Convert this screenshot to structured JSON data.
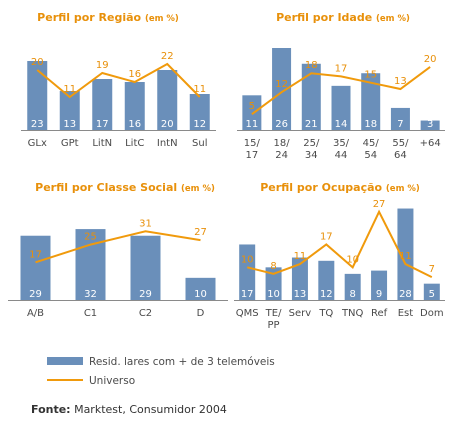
{
  "colors": {
    "bar": "#6a8fba",
    "line": "#f09a0c",
    "title": "#e8900a",
    "axis": "#8a8a8a"
  },
  "chart_data": [
    {
      "type": "bar+line",
      "title": "Perfil por Região",
      "unit": "(em %)",
      "categories": [
        "GLx",
        "GPt",
        "LitN",
        "LitC",
        "IntN",
        "Sul"
      ],
      "series": [
        {
          "name": "Resid. lares com + de 3 telemóveis",
          "kind": "bar",
          "values": [
            23,
            13,
            17,
            16,
            20,
            12
          ]
        },
        {
          "name": "Universo",
          "kind": "line",
          "values": [
            20,
            11,
            19,
            16,
            22,
            11
          ]
        }
      ],
      "ylim": [
        0,
        26
      ]
    },
    {
      "type": "bar+line",
      "title": "Perfil por Idade",
      "unit": "(em %)",
      "categories": [
        "15/\n17",
        "18/\n24",
        "25/\n34",
        "35/\n44",
        "45/\n54",
        "55/\n64",
        "+64"
      ],
      "series": [
        {
          "name": "Resid. lares com + de 3 telemóveis",
          "kind": "bar",
          "values": [
            11,
            26,
            21,
            14,
            18,
            7,
            3
          ]
        },
        {
          "name": "Universo",
          "kind": "line",
          "values": [
            5,
            12,
            18,
            17,
            15,
            13,
            20
          ]
        }
      ],
      "ylim": [
        0,
        26
      ]
    },
    {
      "type": "bar+line",
      "title": "Perfil por Classe Social",
      "unit": "(em %)",
      "categories": [
        "A/B",
        "C1",
        "C2",
        "D"
      ],
      "series": [
        {
          "name": "Resid. lares com + de 3 telemóveis",
          "kind": "bar",
          "values": [
            29,
            32,
            29,
            10
          ]
        },
        {
          "name": "Universo",
          "kind": "line",
          "values": [
            17,
            25,
            31,
            27
          ]
        }
      ],
      "ylim": [
        0,
        37
      ]
    },
    {
      "type": "bar+line",
      "title": "Perfil por Ocupação",
      "unit": "(em %)",
      "categories": [
        "QMS",
        "TE/\nPP",
        "Serv",
        "TQ",
        "TNQ",
        "Ref",
        "Est",
        "Dom"
      ],
      "series": [
        {
          "name": "Resid. lares com + de 3 telemóveis",
          "kind": "bar",
          "values": [
            17,
            10,
            13,
            12,
            8,
            9,
            28,
            5
          ]
        },
        {
          "name": "Universo",
          "kind": "line",
          "values": [
            10,
            8,
            11,
            17,
            10,
            27,
            11,
            7
          ]
        }
      ],
      "ylim": [
        0,
        30
      ]
    }
  ],
  "legend": {
    "bar_label": "Resid. lares com + de 3 telemóveis",
    "line_label": "Universo"
  },
  "source": {
    "label": "Fonte:",
    "text": "Marktest, Consumidor 2004"
  }
}
